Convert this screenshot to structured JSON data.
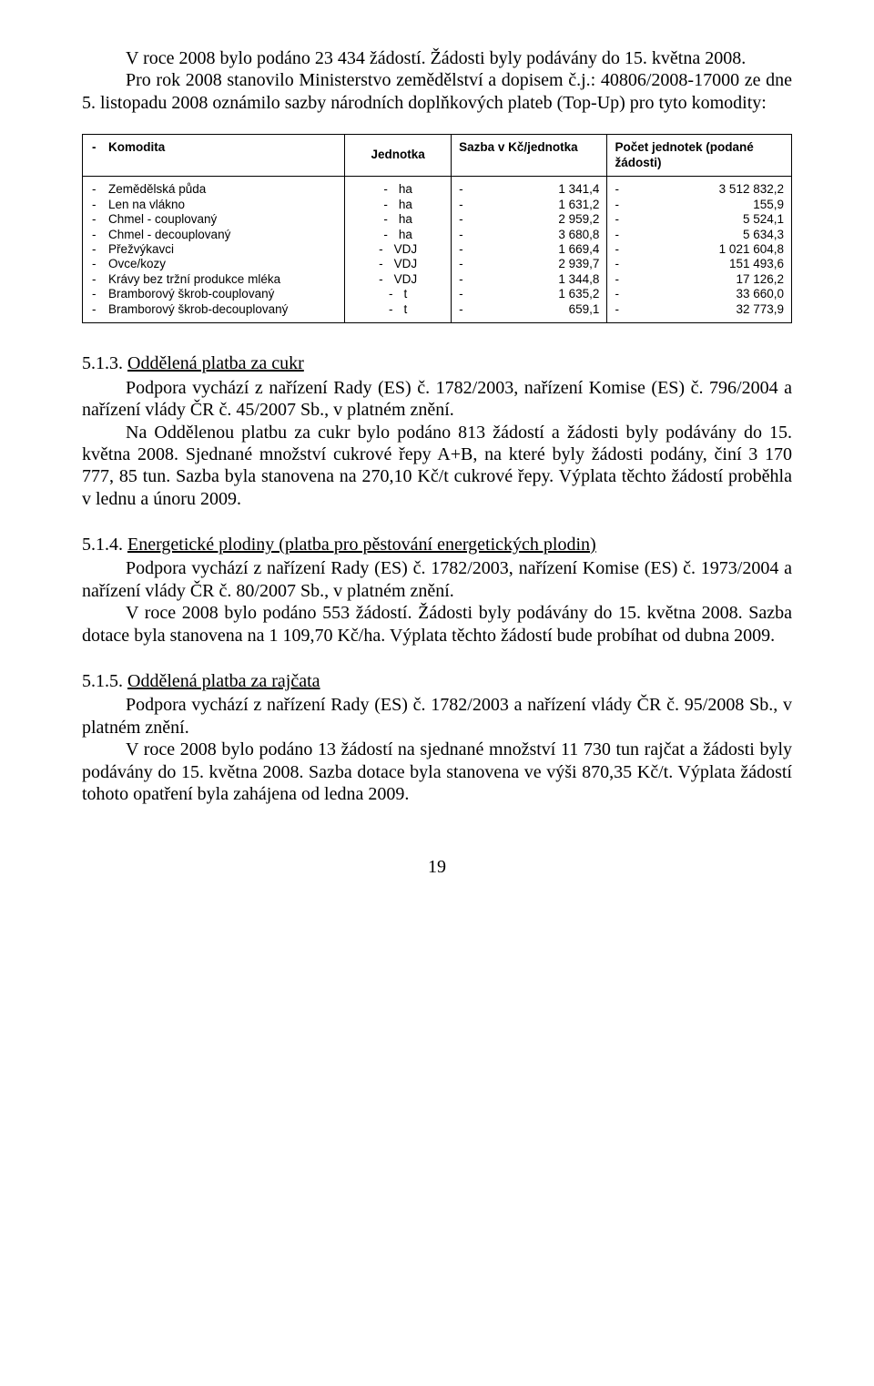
{
  "intro": {
    "p1": "V roce 2008 bylo podáno 23 434 žádostí. Žádosti byly podávány do 15. května 2008.",
    "p2": "Pro rok 2008 stanovilo Ministerstvo zemědělství a dopisem č.j.: 40806/2008-17000 ze dne 5. listopadu 2008 oznámilo sazby národních doplňkových plateb (Top-Up) pro tyto komodity:"
  },
  "table": {
    "header": {
      "komodita": "Komodita",
      "jednotka": "Jednotka",
      "sazba": "Sazba v Kč/jednotka",
      "pocet": "Počet jednotek (podané žádosti)"
    },
    "komodita": [
      "Zemědělská půda",
      "Len na vlákno",
      "Chmel - couplovaný",
      "Chmel - decouplovaný",
      "Přežvýkavci",
      "Ovce/kozy",
      "Krávy bez tržní produkce mléka",
      "Bramborový škrob-couplovaný",
      "Bramborový škrob-decouplovaný"
    ],
    "jednotka": [
      "ha",
      "ha",
      "ha",
      "ha",
      "VDJ",
      "VDJ",
      "VDJ",
      "t",
      "t"
    ],
    "sazba": [
      "1 341,4",
      "1 631,2",
      "2 959,2",
      "3 680,8",
      "1 669,4",
      "2 939,7",
      "1 344,8",
      "1 635,2",
      "659,1"
    ],
    "pocet": [
      "3 512 832,2",
      "155,9",
      "5 524,1",
      "5 634,3",
      "1 021 604,8",
      "151 493,6",
      "17 126,2",
      "33 660,0",
      "32 773,9"
    ]
  },
  "sect513": {
    "num": "5.1.3. ",
    "title": "Oddělená platba za cukr",
    "p1": "Podpora vychází z nařízení Rady (ES) č. 1782/2003, nařízení Komise (ES) č. 796/2004 a nařízení vlády ČR č. 45/2007 Sb., v platném znění.",
    "p2": "Na Oddělenou platbu za cukr bylo podáno 813 žádostí a žádosti byly podávány do 15. května 2008. Sjednané množství cukrové řepy A+B, na které byly žádosti podány, činí 3 170 777, 85 tun. Sazba byla stanovena na 270,10 Kč/t cukrové řepy. Výplata těchto žádostí proběhla v lednu a únoru 2009."
  },
  "sect514": {
    "num": "5.1.4. ",
    "title": "Energetické plodiny (platba pro pěstování energetických plodin)",
    "p1": "Podpora vychází z nařízení Rady (ES) č. 1782/2003, nařízení Komise (ES) č. 1973/2004 a nařízení vlády ČR č. 80/2007 Sb., v platném znění.",
    "p2": "V roce 2008 bylo podáno 553 žádostí. Žádosti byly podávány do 15. května 2008. Sazba dotace byla stanovena na 1 109,70 Kč/ha. Výplata těchto žádostí bude probíhat od dubna 2009."
  },
  "sect515": {
    "num": "5.1.5. ",
    "title": "Oddělená platba za rajčata",
    "p1": "Podpora vychází z nařízení Rady (ES) č. 1782/2003 a nařízení vlády ČR č. 95/2008 Sb., v platném znění.",
    "p2": "V roce 2008 bylo podáno 13 žádostí na sjednané množství 11 730 tun rajčat a žádosti byly podávány do 15. května 2008. Sazba dotace byla stanovena ve výši 870,35 Kč/t. Výplata žádostí tohoto opatření byla zahájena od ledna 2009."
  },
  "pagenum": "19"
}
